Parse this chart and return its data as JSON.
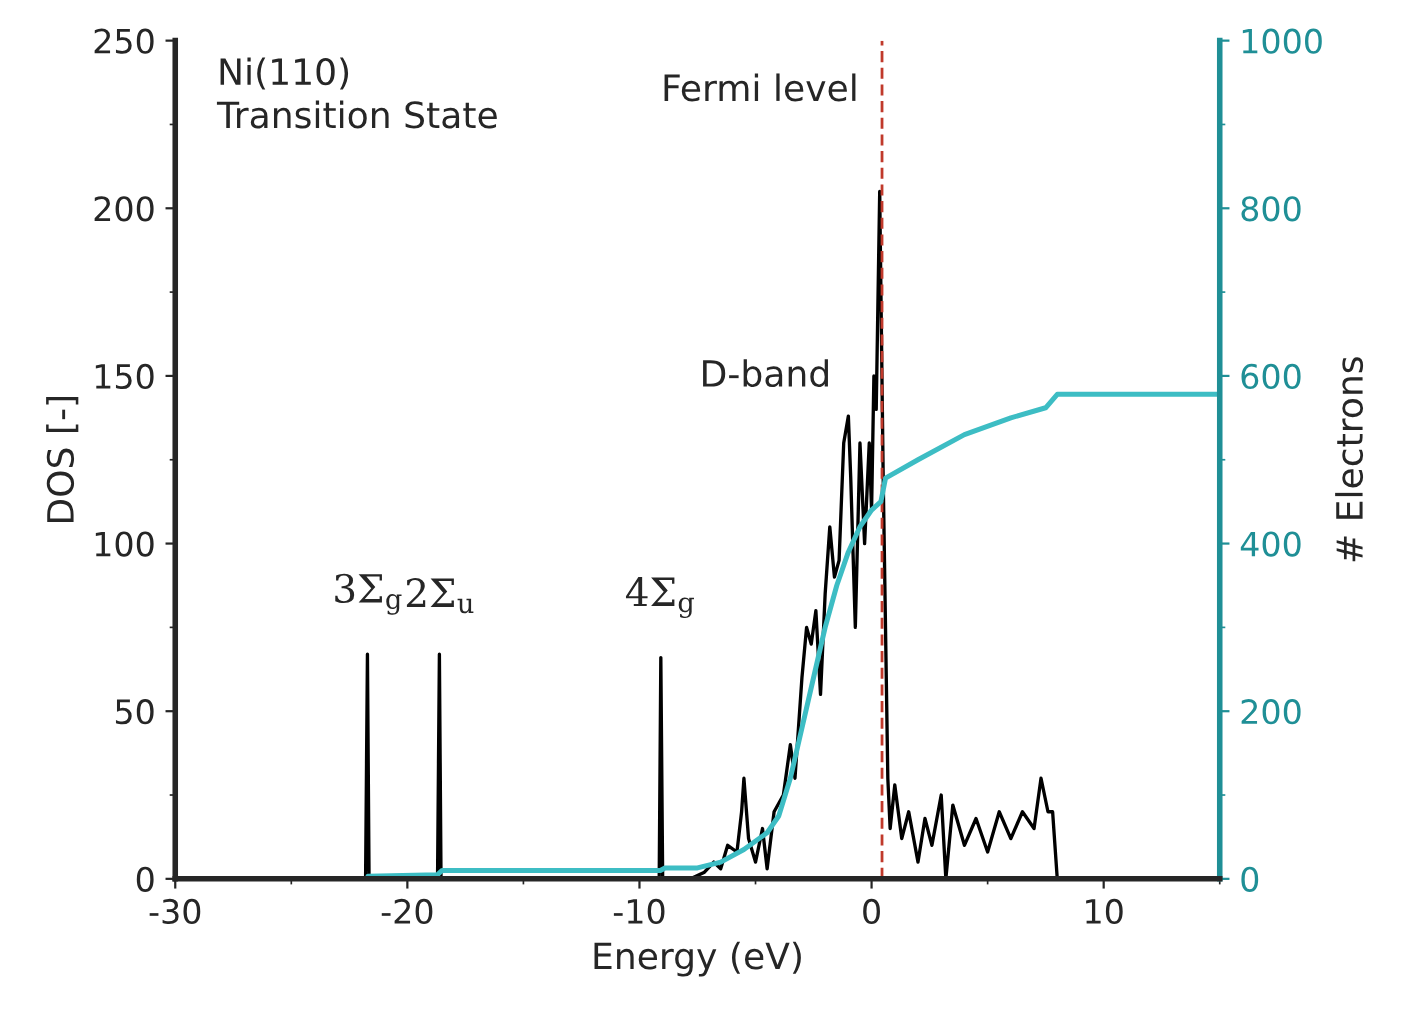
{
  "chart_data": {
    "type": "line",
    "xlabel": "Energy (eV)",
    "ylabel": "DOS [-]",
    "y2label": "# Electrons",
    "xlim": [
      -30,
      15
    ],
    "xticks": [
      -30,
      -20,
      -10,
      0,
      10
    ],
    "ylim": [
      0,
      250
    ],
    "yticks": [
      0,
      50,
      100,
      150,
      200,
      250
    ],
    "y2lim": [
      0,
      1000
    ],
    "y2ticks": [
      0,
      200,
      400,
      600,
      800,
      1000
    ],
    "grid": false,
    "legend": false,
    "marker": "none",
    "line_style": "solid",
    "series": [
      {
        "color": "#000000",
        "x": [
          -30,
          -21.8,
          -21.72,
          -21.65,
          -18.7,
          -18.62,
          -18.55,
          -9.15,
          -9.08,
          -9.0,
          -7.8,
          -7.2,
          -6.8,
          -6.5,
          -6.2,
          -5.8,
          -5.6,
          -5.5,
          -5.3,
          -5.0,
          -4.7,
          -4.5,
          -4.2,
          -3.8,
          -3.5,
          -3.3,
          -3.0,
          -2.8,
          -2.6,
          -2.4,
          -2.2,
          -2.0,
          -1.8,
          -1.6,
          -1.4,
          -1.2,
          -1.0,
          -0.9,
          -0.7,
          -0.5,
          -0.3,
          -0.1,
          0.0,
          0.1,
          0.2,
          0.35,
          0.5,
          0.7,
          0.8,
          1.0,
          1.3,
          1.6,
          2.0,
          2.3,
          2.6,
          3.0,
          3.2,
          3.5,
          4.0,
          4.5,
          5.0,
          5.5,
          6.0,
          6.5,
          7.0,
          7.3,
          7.6,
          7.8,
          8.0
        ],
        "values": [
          0,
          0,
          67,
          0,
          0,
          67,
          0,
          0,
          66,
          0,
          0,
          2,
          5,
          3,
          10,
          8,
          20,
          30,
          12,
          5,
          15,
          3,
          20,
          25,
          40,
          30,
          60,
          75,
          70,
          80,
          55,
          85,
          105,
          90,
          95,
          130,
          138,
          120,
          75,
          130,
          100,
          130,
          110,
          150,
          140,
          205,
          120,
          30,
          15,
          28,
          12,
          20,
          5,
          18,
          10,
          25,
          0,
          22,
          10,
          18,
          8,
          20,
          12,
          20,
          15,
          30,
          20,
          20,
          0
        ]
      },
      {
        "color": "#3dbdc4",
        "axis": "y2",
        "x": [
          -21.7,
          -18.7,
          -18.5,
          -9.1,
          -8.9,
          -7.5,
          -6.5,
          -5.5,
          -4.5,
          -4.0,
          -3.5,
          -3.0,
          -2.5,
          -2.0,
          -1.5,
          -1.0,
          -0.5,
          0.0,
          0.4,
          0.6,
          2.0,
          4.0,
          6.0,
          7.5,
          8.0,
          15
        ],
        "values": [
          3,
          5,
          10,
          10,
          13,
          13,
          20,
          35,
          55,
          75,
          120,
          180,
          240,
          300,
          350,
          390,
          420,
          440,
          450,
          478,
          500,
          530,
          550,
          562,
          578,
          578
        ]
      }
    ],
    "ref_lines": [
      {
        "axis": "x",
        "value": 0.45,
        "label": "Fermi level",
        "color": "#c0392b",
        "line_style": "dashed"
      }
    ],
    "annotations": [
      "Ni(110)\nTransition State",
      "D-band",
      {
        "text": "3Σ$_{g}$",
        "x": -21.7,
        "y": 67
      },
      {
        "text": "2Σ$_{u}$",
        "x": -18.6,
        "y": 67
      },
      {
        "text": "4Σ$_{g}$",
        "x": -9.1,
        "y": 66
      }
    ]
  }
}
